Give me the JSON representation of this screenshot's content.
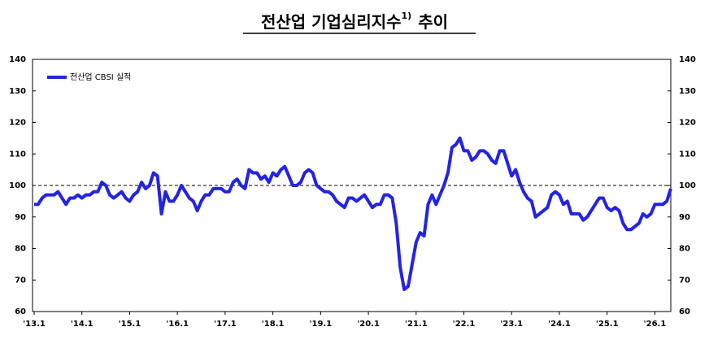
{
  "chart_data": {
    "type": "line",
    "title": {
      "main": "전산업 기업심리지수",
      "superscript": "1)",
      "suffix": "추이"
    },
    "categories": [
      "'13.1",
      null,
      null,
      null,
      null,
      null,
      null,
      null,
      null,
      null,
      null,
      null,
      "'14.1",
      null,
      null,
      null,
      null,
      null,
      null,
      null,
      null,
      null,
      null,
      null,
      "'15.1",
      null,
      null,
      null,
      null,
      null,
      null,
      null,
      null,
      null,
      null,
      null,
      "'16.1",
      null,
      null,
      null,
      null,
      null,
      null,
      null,
      null,
      null,
      null,
      null,
      "'17.1",
      null,
      null,
      null,
      null,
      null,
      null,
      null,
      null,
      null,
      null,
      null,
      "'18.1",
      null,
      null,
      null,
      null,
      null,
      null,
      null,
      null,
      null,
      null,
      null,
      "'19.1",
      null,
      null,
      null,
      null,
      null,
      null,
      null,
      null,
      null,
      null,
      null,
      "'20.1",
      null,
      null,
      null,
      null,
      null,
      null,
      null,
      null,
      null,
      null,
      null,
      "'21.1",
      null,
      null,
      null,
      null,
      null,
      null,
      null,
      null,
      null,
      null,
      null,
      "'22.1",
      null,
      null,
      null,
      null,
      null,
      null,
      null,
      null,
      null,
      null,
      null,
      "'23.1",
      null,
      null,
      null,
      null,
      null,
      null,
      null,
      null,
      null,
      null,
      null,
      "'24.1",
      null,
      null,
      null,
      null,
      null,
      null,
      null,
      null,
      null,
      null,
      null,
      "'25.1",
      null,
      null,
      null,
      null,
      null,
      null,
      null,
      null,
      null,
      null,
      null,
      "'26.1",
      null,
      null,
      null,
      null
    ],
    "series": [
      {
        "name": "전산업 CBSI 실적",
        "color": "#2323e6",
        "values": [
          94,
          94,
          96,
          97,
          97,
          97,
          98,
          96,
          94,
          96,
          96,
          97,
          96,
          97,
          97,
          98,
          98,
          101,
          100,
          97,
          96,
          97,
          98,
          96,
          95,
          97,
          98,
          101,
          99,
          100,
          104,
          103,
          91,
          98,
          95,
          95,
          97,
          100,
          98,
          96,
          95,
          92,
          95,
          97,
          97,
          99,
          99,
          99,
          98,
          98,
          101,
          102,
          100,
          99,
          105,
          104,
          104,
          102,
          103,
          101,
          104,
          103,
          105,
          106,
          103,
          100,
          100,
          101,
          104,
          105,
          104,
          100,
          99,
          98,
          98,
          97,
          95,
          94,
          93,
          96,
          96,
          95,
          96,
          97,
          95,
          93,
          94,
          94,
          97,
          97,
          96,
          88,
          74,
          67,
          68,
          75,
          82,
          85,
          84,
          94,
          97,
          94,
          97,
          100,
          104,
          112,
          113,
          115,
          111,
          111,
          108,
          109,
          111,
          111,
          110,
          108,
          107,
          111,
          111,
          107,
          103,
          105,
          101,
          98,
          96,
          95,
          90,
          91,
          92,
          93,
          97,
          98,
          97,
          94,
          95,
          91,
          91,
          91,
          89,
          90,
          92,
          94,
          96,
          96,
          93,
          92,
          93,
          92,
          88,
          86,
          86,
          87,
          88,
          91,
          90,
          91,
          94,
          94,
          94,
          95,
          99
        ]
      }
    ],
    "ylim": [
      60,
      140
    ],
    "yticks": [
      60,
      70,
      80,
      90,
      100,
      110,
      120,
      130,
      140
    ],
    "y2lim": [
      60,
      140
    ],
    "y2ticks": [
      60,
      70,
      80,
      90,
      100,
      110,
      120,
      130,
      140
    ],
    "reference_line": 100,
    "legend": "top-left"
  }
}
